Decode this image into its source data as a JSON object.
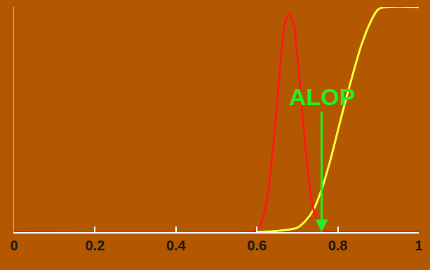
{
  "chart_data": {
    "type": "line",
    "x": [
      0,
      0.58,
      0.6,
      0.62,
      0.64,
      0.66,
      0.67,
      0.68,
      0.69,
      0.7,
      0.72,
      0.74,
      0.76,
      0.78,
      0.8,
      0.82,
      0.84,
      0.86,
      0.88,
      0.9,
      0.92,
      1
    ],
    "series": [
      {
        "color": "#ffff33",
        "line_style": "solid",
        "values": [
          null,
          null,
          0,
          0.002,
          0.004,
          0.007,
          0.01,
          0.012,
          0.015,
          0.02,
          0.05,
          0.1,
          0.19,
          0.31,
          0.45,
          0.59,
          0.72,
          0.84,
          0.93,
          0.99,
          1,
          1
        ]
      },
      {
        "color": "#ff1a1a",
        "line_style": "solid",
        "values": [
          0,
          0,
          0.01,
          0.1,
          0.38,
          0.78,
          0.93,
          0.97,
          0.93,
          0.78,
          0.38,
          0.1,
          0.015,
          0,
          0,
          0,
          0,
          0,
          0,
          0,
          0,
          0
        ]
      }
    ],
    "xlim": [
      0,
      1
    ],
    "xticks": [
      0,
      0.2,
      0.4,
      0.6,
      0.8,
      1
    ],
    "ylim": [
      0,
      1
    ],
    "yticks": [],
    "tick_labels": "x",
    "grid": false,
    "annotations": [
      {
        "text": "ALOP",
        "x": 0.76,
        "y": 0,
        "color": "#22ee22"
      }
    ]
  }
}
